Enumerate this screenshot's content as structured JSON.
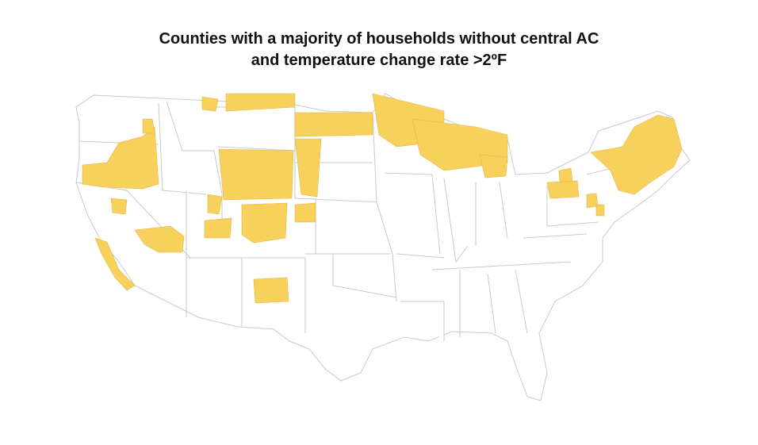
{
  "title": {
    "line1": "Counties with a majority of households without central AC",
    "line2": "and temperature change rate >2ºF"
  },
  "map": {
    "highlight_color": "#f8d05c",
    "border_color": "#c9c9c9",
    "highlighted_regions": [
      "Washington",
      "Oregon",
      "Northern California",
      "Coastal California",
      "Nevada",
      "Idaho",
      "Montana",
      "Wyoming",
      "Utah",
      "Colorado",
      "New Mexico",
      "North Dakota",
      "Minnesota",
      "Wisconsin",
      "Michigan Upper Peninsula",
      "Michigan",
      "Pennsylvania",
      "New York",
      "New Jersey",
      "Vermont",
      "New Hampshire",
      "Maine",
      "Massachusetts",
      "Connecticut"
    ]
  }
}
